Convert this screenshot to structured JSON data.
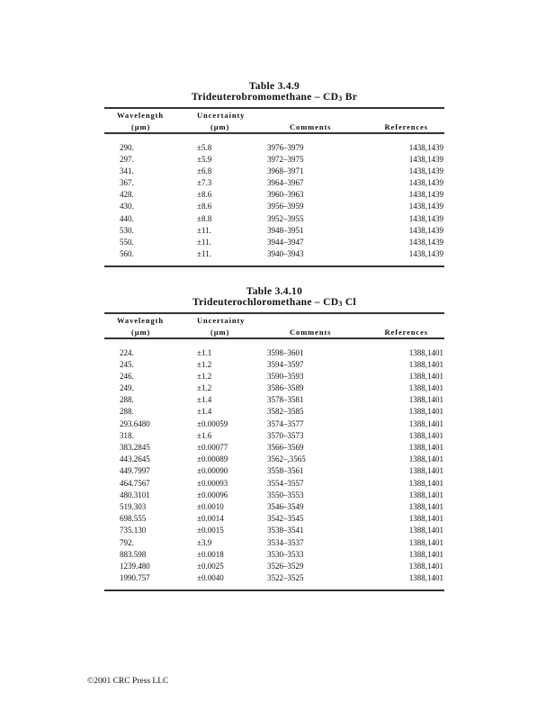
{
  "tables": [
    {
      "number": "Table 3.4.9",
      "name": "Trideuterobromomethane – CD",
      "formula_sub": "3",
      "formula_tail": " Br",
      "headers": {
        "wavelength": "Wavelength",
        "wavelength_unit": "(µm)",
        "uncertainty": "Uncertainty",
        "uncertainty_unit": "(µm)",
        "comments": "Comments",
        "references": "References"
      },
      "rows": [
        [
          "290.",
          "±5.8",
          "3976–3979",
          "1438,1439"
        ],
        [
          "297.",
          "±5.9",
          "3972–3975",
          "1438,1439"
        ],
        [
          "341.",
          "±6.8",
          "3968–3971",
          "1438,1439"
        ],
        [
          "367.",
          "±7.3",
          "3964–3967",
          "1438,1439"
        ],
        [
          "428.",
          "±8.6",
          "3960–3963",
          "1438,1439"
        ],
        [
          "430.",
          "±8.6",
          "3956–3959",
          "1438,1439"
        ],
        [
          "440.",
          "±8.8",
          "3952–3955",
          "1438,1439"
        ],
        [
          "530.",
          "±11.",
          "3948–3951",
          "1438,1439"
        ],
        [
          "550.",
          "±11.",
          "3944–3947",
          "1438,1439"
        ],
        [
          "560.",
          "±11.",
          "3940–3943",
          "1438,1439"
        ]
      ]
    },
    {
      "number": "Table 3.4.10",
      "name": "Trideuterochloromethane – CD",
      "formula_sub": "3",
      "formula_tail": " Cl",
      "headers": {
        "wavelength": "Wavelength",
        "wavelength_unit": "(µm)",
        "uncertainty": "Uncertainty",
        "uncertainty_unit": "(µm)",
        "comments": "Comments",
        "references": "References"
      },
      "rows": [
        [
          "224.",
          "±1.1",
          "3598–3601",
          "1388,1401"
        ],
        [
          "245.",
          "±1.2",
          "3594–3597",
          "1388,1401"
        ],
        [
          "246.",
          "±1.2",
          "3590–3593",
          "1388,1401"
        ],
        [
          "249.",
          "±1.2",
          "3586–3589",
          "1388,1401"
        ],
        [
          "288.",
          "±1.4",
          "3578–3581",
          "1388,1401"
        ],
        [
          "288.",
          "±1.4",
          "3582–3585",
          "1388,1401"
        ],
        [
          "293.6480",
          "±0.00059",
          "3574–3577",
          "1388,1401"
        ],
        [
          "318.",
          "±1.6",
          "3570–3573",
          "1388,1401"
        ],
        [
          "383.2845",
          "±0.00077",
          "3566–3569",
          "1388,1401"
        ],
        [
          "443.2645",
          "±0.00089",
          "3562–,3565",
          "1388,1401"
        ],
        [
          "449.7997",
          "±0.00090",
          "3558–3561",
          "1388,1401"
        ],
        [
          "464.7567",
          "±0.00093",
          "3554–3557",
          "1388,1401"
        ],
        [
          "480.3101",
          "±0.00096",
          "3550–3553",
          "1388,1401"
        ],
        [
          "519.303",
          "±0.0010",
          "3546–3549",
          "1388,1401"
        ],
        [
          "698.555",
          "±0.0014",
          "3542–3545",
          "1388,1401"
        ],
        [
          "735.130",
          "±0.0015",
          "3538–3541",
          "1388,1401"
        ],
        [
          "792.",
          "±3.9",
          "3534–3537",
          "1388,1401"
        ],
        [
          "883.598",
          "±0.0018",
          "3530–3533",
          "1388,1401"
        ],
        [
          "1239.480",
          "±0.0025",
          "3526–3529",
          "1388,1401"
        ],
        [
          "1990.757",
          "±0.0040",
          "3522–3525",
          "1388,1401"
        ]
      ]
    }
  ],
  "footer": "©2001 CRC Press LLC"
}
